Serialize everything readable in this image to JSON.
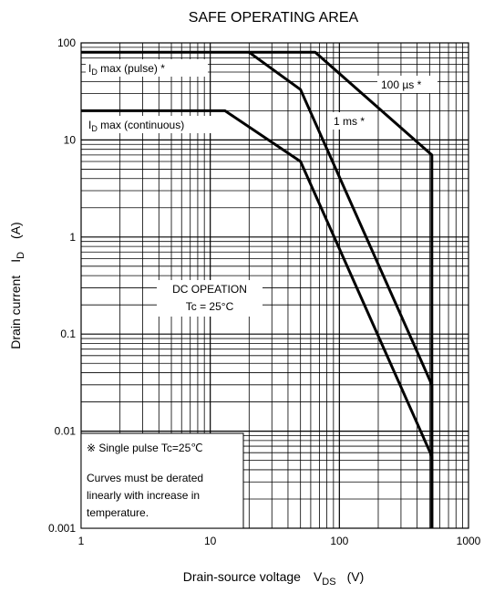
{
  "chart_data": {
    "type": "line",
    "title": "SAFE OPERATING AREA",
    "xlabel": {
      "main": "Drain-source voltage",
      "symbol": "V",
      "sub": "DS",
      "unit": "(V)"
    },
    "ylabel": {
      "main": "Drain current",
      "symbol": "I",
      "sub": "D",
      "unit": "(A)"
    },
    "xscale": "log",
    "yscale": "log",
    "xlim": [
      1,
      1000
    ],
    "ylim": [
      0.001,
      100
    ],
    "grid": true,
    "x_tick_labels": [
      "1",
      "10",
      "100",
      "1000"
    ],
    "y_tick_labels": [
      "0.001",
      "0.01",
      "0.1",
      "1",
      "10",
      "100"
    ],
    "series": [
      {
        "name": "100 µs *",
        "points": [
          [
            1,
            80
          ],
          [
            65,
            80
          ],
          [
            520,
            7
          ],
          [
            520,
            0.001
          ]
        ]
      },
      {
        "name": "1 ms *",
        "points": [
          [
            20,
            80
          ],
          [
            50,
            33
          ],
          [
            520,
            0.03
          ],
          [
            520,
            0.001
          ]
        ]
      },
      {
        "name": "DC OPEATION",
        "points": [
          [
            1,
            20
          ],
          [
            13,
            20
          ],
          [
            50,
            6
          ],
          [
            520,
            0.0055
          ],
          [
            520,
            0.001
          ]
        ]
      }
    ],
    "annotations": {
      "id_max_pulse": {
        "symbol": "I",
        "sub": "D",
        "text": " max (pulse) *"
      },
      "id_max_cont": {
        "symbol": "I",
        "sub": "D",
        "text": " max (continuous)"
      },
      "label_100us": "100 µs *",
      "label_1ms": "1 ms *",
      "dc_line1": "DC OPEATION",
      "dc_line2": "Tc = 25°C",
      "note_line1": "※  Single pulse Tc=25℃",
      "note_line2": "Curves must be derated",
      "note_line3": "linearly with increase in",
      "note_line4": "temperature."
    }
  }
}
